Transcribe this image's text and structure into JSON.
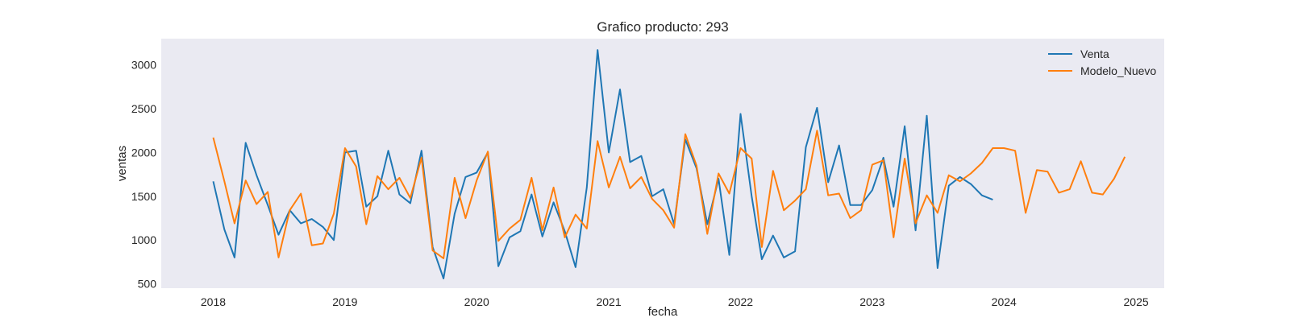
{
  "chart_data": {
    "type": "line",
    "title": "Grafico producto: 293",
    "xlabel": "fecha",
    "ylabel": "ventas",
    "xlim": [
      "2017-08-10",
      "2025-03-20"
    ],
    "ylim": [
      450,
      3300
    ],
    "grid": false,
    "legend": "top-right",
    "background": "#eaeaf2",
    "x_ticks": [
      "2018-01-01",
      "2019-01-01",
      "2020-01-01",
      "2021-01-01",
      "2022-01-01",
      "2023-01-01",
      "2024-01-01",
      "2025-01-01"
    ],
    "x_tick_labels": [
      "2018",
      "2019",
      "2020",
      "2021",
      "2022",
      "2023",
      "2024",
      "2025"
    ],
    "y_ticks": [
      500,
      1000,
      1500,
      2000,
      2500,
      3000
    ],
    "y_tick_labels": [
      "500",
      "1000",
      "1500",
      "2000",
      "2500",
      "3000"
    ],
    "series": [
      {
        "name": "Venta",
        "color": "#1f77b4",
        "x": [
          "2018-01",
          "2018-02",
          "2018-03",
          "2018-04",
          "2018-05",
          "2018-06",
          "2018-07",
          "2018-08",
          "2018-09",
          "2018-10",
          "2018-11",
          "2018-12",
          "2019-01",
          "2019-02",
          "2019-03",
          "2019-04",
          "2019-05",
          "2019-06",
          "2019-07",
          "2019-08",
          "2019-09",
          "2019-10",
          "2019-11",
          "2019-12",
          "2020-01",
          "2020-02",
          "2020-03",
          "2020-04",
          "2020-05",
          "2020-06",
          "2020-07",
          "2020-08",
          "2020-09",
          "2020-10",
          "2020-11",
          "2020-12",
          "2021-01",
          "2021-02",
          "2021-03",
          "2021-04",
          "2021-05",
          "2021-06",
          "2021-07",
          "2021-08",
          "2021-09",
          "2021-10",
          "2021-11",
          "2021-12",
          "2022-01",
          "2022-02",
          "2022-03",
          "2022-04",
          "2022-05",
          "2022-06",
          "2022-07",
          "2022-08",
          "2022-09",
          "2022-10",
          "2022-11",
          "2022-12",
          "2023-01",
          "2023-02",
          "2023-03",
          "2023-04",
          "2023-05",
          "2023-06",
          "2023-07",
          "2023-08",
          "2023-09",
          "2023-10",
          "2023-11",
          "2023-12"
        ],
        "values": [
          1670,
          1120,
          800,
          2110,
          1740,
          1400,
          1060,
          1340,
          1190,
          1240,
          1150,
          1000,
          2000,
          2020,
          1380,
          1500,
          2020,
          1520,
          1420,
          2020,
          920,
          560,
          1300,
          1720,
          1770,
          2000,
          700,
          1030,
          1100,
          1520,
          1040,
          1430,
          1100,
          690,
          1600,
          3170,
          2000,
          2720,
          1890,
          1960,
          1500,
          1580,
          1180,
          2150,
          1820,
          1180,
          1700,
          830,
          2440,
          1500,
          780,
          1050,
          800,
          870,
          2060,
          2510,
          1660,
          2080,
          1400,
          1400,
          1570,
          1940,
          1380,
          2300,
          1110,
          2420,
          680,
          1620,
          1720,
          1640,
          1510,
          1460
        ]
      },
      {
        "name": "Modelo_Nuevo",
        "color": "#ff7f0e",
        "x": [
          "2018-01",
          "2018-02",
          "2018-03",
          "2018-04",
          "2018-05",
          "2018-06",
          "2018-07",
          "2018-08",
          "2018-09",
          "2018-10",
          "2018-11",
          "2018-12",
          "2019-01",
          "2019-02",
          "2019-03",
          "2019-04",
          "2019-05",
          "2019-06",
          "2019-07",
          "2019-08",
          "2019-09",
          "2019-10",
          "2019-11",
          "2019-12",
          "2020-01",
          "2020-02",
          "2020-03",
          "2020-04",
          "2020-05",
          "2020-06",
          "2020-07",
          "2020-08",
          "2020-09",
          "2020-10",
          "2020-11",
          "2020-12",
          "2021-01",
          "2021-02",
          "2021-03",
          "2021-04",
          "2021-05",
          "2021-06",
          "2021-07",
          "2021-08",
          "2021-09",
          "2021-10",
          "2021-11",
          "2021-12",
          "2022-01",
          "2022-02",
          "2022-03",
          "2022-04",
          "2022-05",
          "2022-06",
          "2022-07",
          "2022-08",
          "2022-09",
          "2022-10",
          "2022-11",
          "2022-12",
          "2023-01",
          "2023-02",
          "2023-03",
          "2023-04",
          "2023-05",
          "2023-06",
          "2023-07",
          "2023-08",
          "2023-09",
          "2023-10",
          "2023-11",
          "2023-12",
          "2024-01",
          "2024-02",
          "2024-03",
          "2024-04",
          "2024-05",
          "2024-06",
          "2024-07",
          "2024-08",
          "2024-09",
          "2024-10",
          "2024-11",
          "2024-12"
        ],
        "values": [
          2170,
          1670,
          1190,
          1680,
          1410,
          1550,
          800,
          1340,
          1530,
          940,
          960,
          1300,
          2050,
          1840,
          1180,
          1730,
          1580,
          1710,
          1480,
          1940,
          880,
          790,
          1710,
          1250,
          1680,
          2010,
          990,
          1130,
          1230,
          1710,
          1110,
          1600,
          1030,
          1290,
          1130,
          2130,
          1600,
          1950,
          1590,
          1720,
          1470,
          1340,
          1140,
          2210,
          1850,
          1070,
          1760,
          1530,
          2050,
          1930,
          920,
          1790,
          1340,
          1450,
          1580,
          2250,
          1510,
          1530,
          1250,
          1340,
          1860,
          1910,
          1030,
          1930,
          1190,
          1510,
          1310,
          1740,
          1670,
          1760,
          1880,
          2050,
          2050,
          2020,
          1310,
          1800,
          1780,
          1540,
          1580,
          1900,
          1540,
          1520,
          1700,
          1950
        ]
      }
    ]
  }
}
